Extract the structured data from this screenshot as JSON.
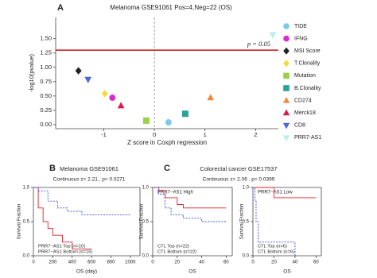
{
  "chart_data": [
    {
      "type": "scatter",
      "panel_label": "A",
      "title": "Melanoma GSE91061   Pos=4,Neg=22 (OS)",
      "x_label": "Z score in Coxph regression",
      "y_label": "-log10(pvalue)",
      "xlim": [
        -1.95,
        2.45
      ],
      "ylim": [
        -0.07,
        1.87
      ],
      "xticks": [
        -1,
        0,
        1,
        2
      ],
      "yticks": [
        {
          "value": 0,
          "label": "0.00"
        },
        {
          "value": 0.25,
          "label": "0.25"
        },
        {
          "value": 0.5,
          "label": "0.50"
        },
        {
          "value": 0.75,
          "label": "0.75"
        },
        {
          "value": 1,
          "label": "1.00"
        },
        {
          "value": 1.25,
          "label": "1.25"
        },
        {
          "value": 1.5,
          "label": "1.50"
        }
      ],
      "vline": 0,
      "hline": {
        "value": 1.3,
        "label": "p = 0.05",
        "color": "#cc1111"
      },
      "series": [
        {
          "name": "TIDE",
          "color": "#7ec8ec",
          "marker": "circle",
          "x": 0.28,
          "y": 0.04
        },
        {
          "name": "IFNG",
          "color": "#d62fcf",
          "marker": "circle",
          "x": -0.83,
          "y": 0.47
        },
        {
          "name": "MSI Score",
          "color": "#222222",
          "marker": "diamond",
          "x": -1.5,
          "y": 0.94
        },
        {
          "name": "T.Clonality",
          "color": "#f1dc3c",
          "marker": "diamond",
          "x": -0.98,
          "y": 0.54
        },
        {
          "name": "Mutation",
          "color": "#9bd04a",
          "marker": "square",
          "x": -0.16,
          "y": 0.07
        },
        {
          "name": "B.Clonality",
          "color": "#2aa199",
          "marker": "square",
          "x": 0.61,
          "y": 0.19
        },
        {
          "name": "CD274",
          "color": "#f08a3c",
          "marker": "triangle-up",
          "x": 1.11,
          "y": 0.47
        },
        {
          "name": "Merck18",
          "color": "#d81b4a",
          "marker": "triangle-up",
          "x": -0.66,
          "y": 0.33
        },
        {
          "name": "CD8",
          "color": "#4a67d8",
          "marker": "triangle-down",
          "x": -1.31,
          "y": 0.79
        },
        {
          "name": "PRR7-AS1",
          "color": "#b7f0e6",
          "marker": "triangle-down",
          "x": 2.34,
          "y": 1.57
        }
      ]
    },
    {
      "type": "step",
      "panel_label": "B",
      "title": "Melanoma GSE91061",
      "subtitle": "Continuous z= 2.21 , p= 0.0271",
      "x_label": "OS (day)",
      "y_label": "Survival Fraction",
      "xlim": [
        0,
        1100
      ],
      "ylim": [
        0,
        1
      ],
      "xticks": [
        0,
        200,
        400,
        600,
        800,
        1000
      ],
      "yticks": [
        {
          "value": 0,
          "label": "0.0"
        },
        {
          "value": 0.5,
          "label": "0.5"
        },
        {
          "value": 1,
          "label": "1.0"
        }
      ],
      "series": [
        {
          "name": "PRR7−AS1 Top (n=10)",
          "color": "#e8202a",
          "dash": false,
          "x": [
            0,
            50,
            100,
            150,
            200,
            300,
            400,
            600
          ],
          "values": [
            1,
            0.7,
            0.5,
            0.4,
            0.3,
            0.2,
            0.1,
            0.1
          ]
        },
        {
          "name": "PRR7−AS1 Bottom (n=16)",
          "color": "#3a4fd8",
          "dash": true,
          "x": [
            0,
            50,
            150,
            250,
            350,
            500,
            1000
          ],
          "values": [
            1,
            0.95,
            0.8,
            0.7,
            0.65,
            0.6,
            0.6
          ]
        }
      ]
    },
    {
      "type": "step",
      "panel_label": "C",
      "title": "Colorectal cancer GSE17537",
      "subtitle": "Continuous z= 2.06 , p= 0.0399",
      "header": "PRR7−AS1 High",
      "x_label": "OS",
      "y_label": "Survival Fraction",
      "xlim": [
        0,
        65
      ],
      "ylim": [
        0,
        1
      ],
      "xticks": [
        0,
        20,
        40,
        60
      ],
      "yticks": [
        {
          "value": 0,
          "label": "0.0"
        },
        {
          "value": 0.5,
          "label": "0.5"
        },
        {
          "value": 1,
          "label": "1.0"
        }
      ],
      "series": [
        {
          "name": "CTL Top (n=22)",
          "color": "#e8202a",
          "dash": false,
          "x": [
            0,
            5,
            10,
            20,
            25,
            60
          ],
          "values": [
            1,
            0.95,
            0.85,
            0.75,
            0.7,
            0.7
          ]
        },
        {
          "name": "CTL Bottom (n=22)",
          "color": "#3a4fd8",
          "dash": true,
          "x": [
            0,
            5,
            10,
            15,
            25,
            40,
            60
          ],
          "values": [
            1,
            0.9,
            0.7,
            0.6,
            0.55,
            0.5,
            0.5
          ]
        }
      ]
    },
    {
      "type": "step",
      "header": "PRR7−AS1 Low",
      "x_label": "OS",
      "y_label": "Survival Fraction",
      "xlim": [
        0,
        65
      ],
      "ylim": [
        0,
        1
      ],
      "xticks": [
        0,
        20,
        40,
        60
      ],
      "yticks": [
        {
          "value": 0,
          "label": "0.0"
        },
        {
          "value": 0.5,
          "label": "0.5"
        },
        {
          "value": 1,
          "label": "1.0"
        }
      ],
      "series": [
        {
          "name": "CTL Top (n=6)",
          "color": "#e8202a",
          "dash": false,
          "x": [
            0,
            20,
            60
          ],
          "values": [
            1,
            0.85,
            0.85
          ]
        },
        {
          "name": "CTL Bottom (n=6)",
          "color": "#3a4fd8",
          "dash": true,
          "x": [
            0,
            2,
            3,
            5,
            40
          ],
          "values": [
            1,
            0.8,
            0.5,
            0.2,
            0
          ]
        }
      ]
    }
  ]
}
